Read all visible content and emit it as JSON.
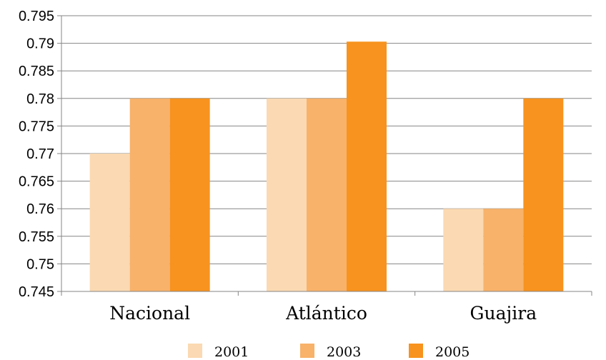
{
  "chart_data": {
    "type": "bar",
    "title": "",
    "xlabel": "",
    "ylabel": "",
    "categories": [
      "Nacional",
      "Atlántico",
      "Guajira"
    ],
    "series": [
      {
        "name": "2001",
        "values": [
          0.77,
          0.78,
          0.76
        ],
        "color": "#FBD9B2"
      },
      {
        "name": "2003",
        "values": [
          0.78,
          0.78,
          0.76
        ],
        "color": "#F8B26A"
      },
      {
        "name": "2005",
        "values": [
          0.78,
          0.7903,
          0.78
        ],
        "color": "#F7931E"
      }
    ],
    "ylim": [
      0.745,
      0.795
    ],
    "yticks": [
      "0.745",
      "0.75",
      "0.755",
      "0.76",
      "0.765",
      "0.77",
      "0.775",
      "0.78",
      "0.785",
      "0.79",
      "0.795"
    ],
    "grid": true,
    "legend_position": "bottom"
  }
}
